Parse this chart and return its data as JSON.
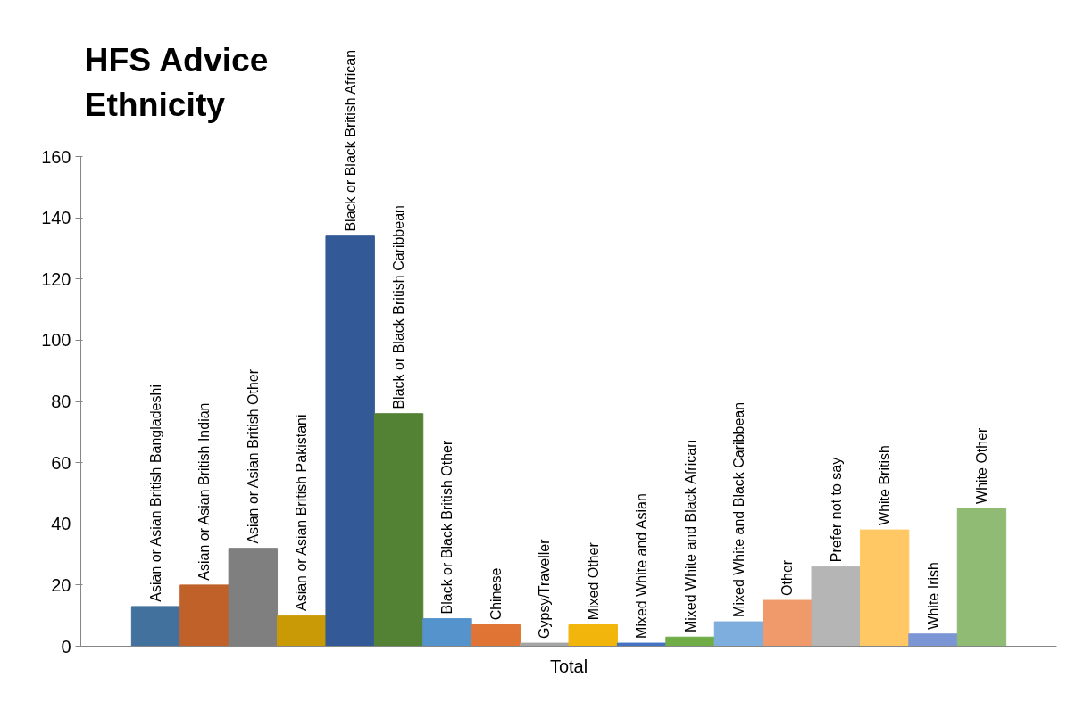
{
  "chart_data": {
    "type": "bar",
    "title": "HFS Advice Ethnicity",
    "categories": [
      "Total"
    ],
    "ylim": [
      0,
      160
    ],
    "yticks": [
      0,
      20,
      40,
      60,
      80,
      100,
      120,
      140,
      160
    ],
    "grid": false,
    "legend": false,
    "series": [
      {
        "name": "Asian or Asian British Bangladeshi",
        "color": "#41719c",
        "values": [
          13
        ]
      },
      {
        "name": "Asian or Asian British Indian",
        "color": "#c0612a",
        "values": [
          20
        ]
      },
      {
        "name": "Asian or Asian British Other",
        "color": "#7f7f7f",
        "values": [
          32
        ]
      },
      {
        "name": "Asian or Asian British Pakistani",
        "color": "#c99a06",
        "values": [
          10
        ]
      },
      {
        "name": "Black or Black British African",
        "color": "#335a96",
        "values": [
          134
        ]
      },
      {
        "name": "Black or Black British Caribbean",
        "color": "#548235",
        "values": [
          76
        ]
      },
      {
        "name": "Black or Black British Other",
        "color": "#5593cc",
        "values": [
          9
        ]
      },
      {
        "name": "Chinese",
        "color": "#e07434",
        "values": [
          7
        ]
      },
      {
        "name": "Gypsy/Traveller",
        "color": "#a5a5a5",
        "values": [
          1
        ]
      },
      {
        "name": "Mixed Other",
        "color": "#f2b50c",
        "values": [
          7
        ]
      },
      {
        "name": "Mixed White and Asian",
        "color": "#4472c4",
        "values": [
          1
        ]
      },
      {
        "name": "Mixed White and Black African",
        "color": "#70ad47",
        "values": [
          3
        ]
      },
      {
        "name": "Mixed White and Black Caribbean",
        "color": "#7eaedd",
        "values": [
          8
        ]
      },
      {
        "name": "Other",
        "color": "#f0996a",
        "values": [
          15
        ]
      },
      {
        "name": "Prefer not to say",
        "color": "#b5b5b5",
        "values": [
          26
        ]
      },
      {
        "name": "White British",
        "color": "#ffc865",
        "values": [
          38
        ]
      },
      {
        "name": "White Irish",
        "color": "#7b95d5",
        "values": [
          4
        ]
      },
      {
        "name": "White Other",
        "color": "#8fbb74",
        "values": [
          45
        ]
      }
    ]
  }
}
